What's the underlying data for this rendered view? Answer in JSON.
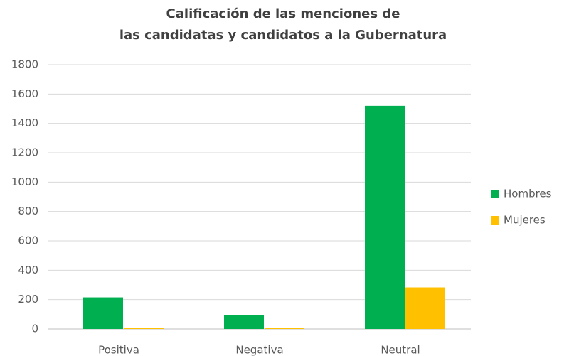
{
  "chart_data": {
    "type": "bar",
    "title": [
      "Calificación de las menciones de",
      "las candidatas y candidatos a  la Gubernatura"
    ],
    "categories": [
      "Positiva",
      "Negativa",
      "Neutral"
    ],
    "series": [
      {
        "name": "Hombres",
        "color": "#00b050",
        "values": [
          215,
          95,
          1520
        ]
      },
      {
        "name": "Mujeres",
        "color": "#ffc000",
        "values": [
          8,
          5,
          283
        ]
      }
    ],
    "ylim": [
      0,
      1800
    ],
    "yticks": [
      0,
      200,
      400,
      600,
      800,
      1000,
      1200,
      1400,
      1600,
      1800
    ],
    "grid": true,
    "legend": "right"
  }
}
